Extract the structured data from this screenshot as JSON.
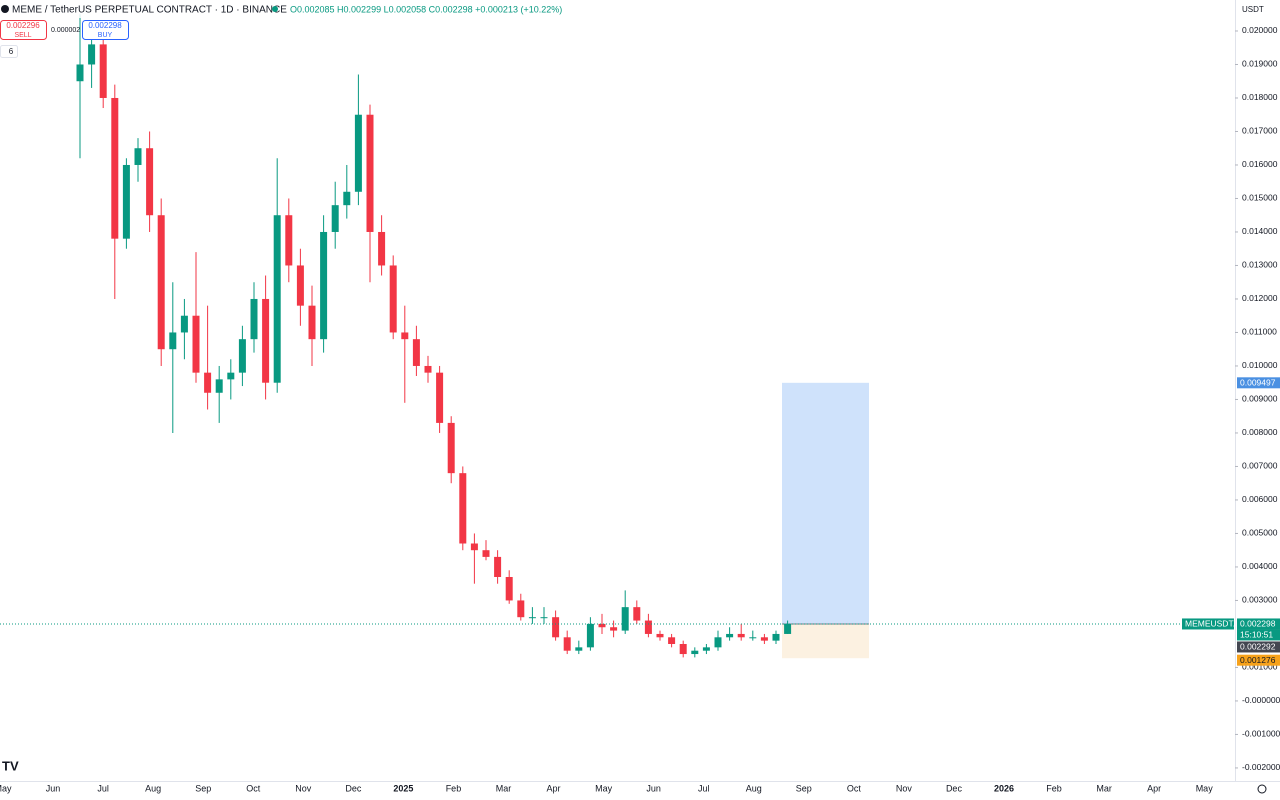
{
  "ui": {
    "symbol": "MEME / TetherUS PERPETUAL CONTRACT · 1D · BINANCE",
    "ohlc": "O0.002085 H0.002299 L0.002058 C0.002298 +0.000213 (+10.22%)",
    "sell_price": "0.002296",
    "sell": "SELL",
    "spread": "0.000002",
    "buy_price": "0.002298",
    "buy": "BUY",
    "indicators": "6",
    "currency": "USDT",
    "ticker_label": "MEMEUSDT.P",
    "countdown": "15:10:51",
    "bid_label": "0.002292",
    "logo": "TV"
  },
  "chart_data": {
    "type": "candlestick",
    "xaxis_labels": [
      "May",
      "Jun",
      "Jul",
      "Aug",
      "Sep",
      "Oct",
      "Nov",
      "Dec",
      "2025",
      "Feb",
      "Mar",
      "Apr",
      "May",
      "Jun",
      "Jul",
      "Aug",
      "Sep",
      "Oct",
      "Nov",
      "Dec",
      "2026",
      "Feb",
      "Mar",
      "Apr",
      "May"
    ],
    "open": [
      0.0185,
      0.019,
      0.0196,
      0.018,
      0.0138,
      0.016,
      0.0165,
      0.0145,
      0.0105,
      0.011,
      0.0115,
      0.0098,
      0.0092,
      0.0096,
      0.0098,
      0.0108,
      0.012,
      0.0095,
      0.0145,
      0.013,
      0.0118,
      0.0108,
      0.014,
      0.0148,
      0.0152,
      0.0175,
      0.014,
      0.013,
      0.011,
      0.0108,
      0.01,
      0.0098,
      0.0083,
      0.0068,
      0.0047,
      0.0045,
      0.0043,
      0.0037,
      0.003,
      0.0025,
      0.0025,
      0.0025,
      0.0019,
      0.0015,
      0.0016,
      0.0023,
      0.0022,
      0.0021,
      0.0028,
      0.0024,
      0.002,
      0.0019,
      0.0017,
      0.0014,
      0.0015,
      0.0016,
      0.0019,
      0.002,
      0.0019,
      0.0019,
      0.0018,
      0.002
    ],
    "high": [
      0.0205,
      0.0202,
      0.0199,
      0.0184,
      0.0162,
      0.0168,
      0.017,
      0.015,
      0.0125,
      0.012,
      0.0134,
      0.0118,
      0.01,
      0.0102,
      0.0112,
      0.0125,
      0.0127,
      0.0162,
      0.015,
      0.0135,
      0.0124,
      0.0145,
      0.0155,
      0.016,
      0.0187,
      0.0178,
      0.0145,
      0.0133,
      0.0118,
      0.0112,
      0.0103,
      0.01,
      0.0085,
      0.007,
      0.005,
      0.0048,
      0.0045,
      0.0039,
      0.0032,
      0.0028,
      0.0028,
      0.0027,
      0.0021,
      0.0018,
      0.0025,
      0.0026,
      0.0024,
      0.0033,
      0.003,
      0.0026,
      0.0021,
      0.002,
      0.0018,
      0.0016,
      0.0017,
      0.0021,
      0.0022,
      0.0023,
      0.0021,
      0.002,
      0.0021,
      0.0024
    ],
    "low": [
      0.0162,
      0.0183,
      0.0177,
      0.012,
      0.0135,
      0.0155,
      0.014,
      0.01,
      0.008,
      0.0102,
      0.0095,
      0.0087,
      0.0083,
      0.009,
      0.0094,
      0.0104,
      0.009,
      0.0092,
      0.0125,
      0.0112,
      0.01,
      0.0104,
      0.0135,
      0.0144,
      0.0148,
      0.0125,
      0.0127,
      0.0108,
      0.0089,
      0.0097,
      0.0095,
      0.008,
      0.0065,
      0.0045,
      0.0035,
      0.0042,
      0.0035,
      0.0029,
      0.0024,
      0.0023,
      0.0023,
      0.0018,
      0.0014,
      0.0014,
      0.0015,
      0.002,
      0.0019,
      0.002,
      0.0023,
      0.0019,
      0.0018,
      0.0016,
      0.0013,
      0.0013,
      0.0014,
      0.0015,
      0.0018,
      0.0018,
      0.0018,
      0.0017,
      0.0017,
      0.002
    ],
    "close": [
      0.019,
      0.0196,
      0.018,
      0.0138,
      0.016,
      0.0165,
      0.0145,
      0.0105,
      0.011,
      0.0115,
      0.0098,
      0.0092,
      0.0096,
      0.0098,
      0.0108,
      0.012,
      0.0095,
      0.0145,
      0.013,
      0.0118,
      0.0108,
      0.014,
      0.0148,
      0.0152,
      0.0175,
      0.014,
      0.013,
      0.011,
      0.0108,
      0.01,
      0.0098,
      0.0083,
      0.0068,
      0.0047,
      0.0045,
      0.0043,
      0.0037,
      0.003,
      0.0025,
      0.0025,
      0.0025,
      0.0019,
      0.0015,
      0.0016,
      0.0023,
      0.0022,
      0.0021,
      0.0028,
      0.0024,
      0.002,
      0.0019,
      0.0017,
      0.0014,
      0.0015,
      0.0016,
      0.0019,
      0.002,
      0.0019,
      0.0019,
      0.0018,
      0.002,
      0.0023
    ],
    "up_color": "#089981",
    "down_color": "#f23645",
    "position": {
      "target": 0.009497,
      "entry": 0.002298,
      "stop": 0.001276,
      "profit_color": "#cfe2fb",
      "loss_color": "#fcf1e1"
    },
    "ylim": [
      -0.00239,
      0.020925
    ],
    "yticks": [
      {
        "value": 0.02,
        "label": "0.020000"
      },
      {
        "value": 0.019,
        "label": "0.019000"
      },
      {
        "value": 0.018,
        "label": "0.018000"
      },
      {
        "value": 0.017,
        "label": "0.017000"
      },
      {
        "value": 0.016,
        "label": "0.016000"
      },
      {
        "value": 0.015,
        "label": "0.015000"
      },
      {
        "value": 0.014,
        "label": "0.014000"
      },
      {
        "value": 0.013,
        "label": "0.013000"
      },
      {
        "value": 0.012,
        "label": "0.012000"
      },
      {
        "value": 0.011,
        "label": "0.011000"
      },
      {
        "value": 0.01,
        "label": "0.010000"
      },
      {
        "value": 0.009,
        "label": "0.009000"
      },
      {
        "value": 0.008,
        "label": "0.008000"
      },
      {
        "value": 0.007,
        "label": "0.007000"
      },
      {
        "value": 0.006,
        "label": "0.006000"
      },
      {
        "value": 0.005,
        "label": "0.005000"
      },
      {
        "value": 0.004,
        "label": "0.004000"
      },
      {
        "value": 0.003,
        "label": "0.003000"
      },
      {
        "value": 0.001,
        "label": "0.001000"
      },
      {
        "value": 0,
        "label": "-0.000000"
      },
      {
        "value": -0.001,
        "label": "-0.001000"
      },
      {
        "value": -0.002,
        "label": "-0.002000"
      }
    ],
    "grid": false
  }
}
